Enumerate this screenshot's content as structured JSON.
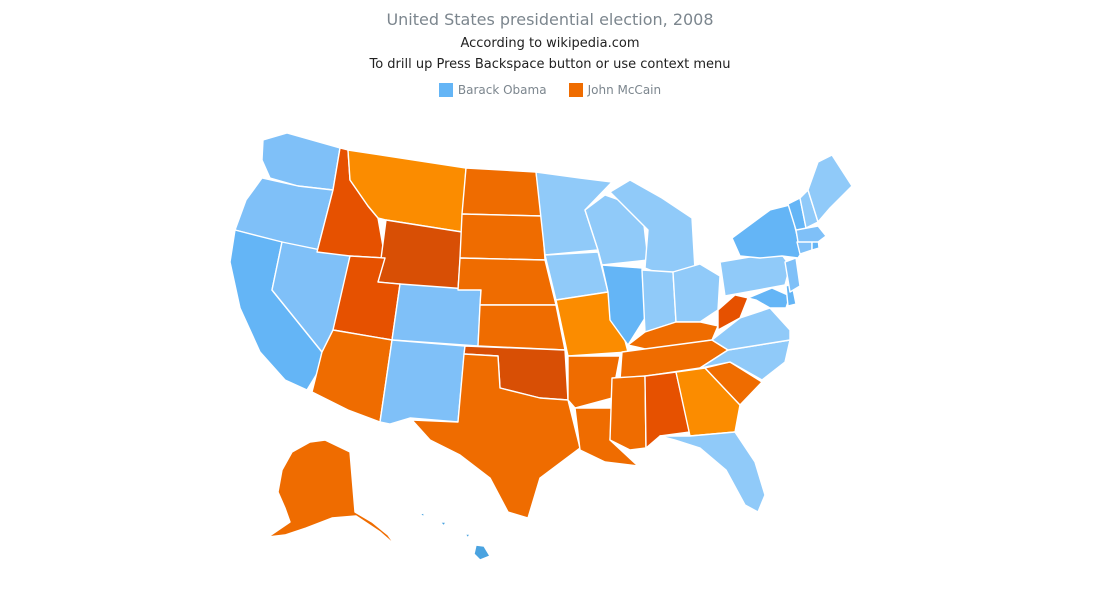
{
  "chart": {
    "title": "United States presidential election, 2008",
    "subtitle_1": "According to wikipedia.com",
    "subtitle_2": "To drill up Press Backspace button or use context menu"
  },
  "legend": [
    {
      "name": "Barack Obama",
      "color": "#64b5f6"
    },
    {
      "name": "John McCain",
      "color": "#ef6c00"
    }
  ],
  "colors": {
    "obama_dark": "#64b5f6",
    "obama_mid": "#7fc0f8",
    "obama_light": "#90caf9",
    "mccain_light": "#fb8c00",
    "mccain_mid": "#ef6c00",
    "mccain_dark": "#e65100",
    "mccain_darkest": "#d84f05",
    "hawaii": "#4aa3e0"
  },
  "states": [
    {
      "id": "WA",
      "winner": "Barack Obama",
      "shade": "obama_mid"
    },
    {
      "id": "OR",
      "winner": "Barack Obama",
      "shade": "obama_mid"
    },
    {
      "id": "CA",
      "winner": "Barack Obama",
      "shade": "obama_dark"
    },
    {
      "id": "NV",
      "winner": "Barack Obama",
      "shade": "obama_mid"
    },
    {
      "id": "ID",
      "winner": "John McCain",
      "shade": "mccain_dark"
    },
    {
      "id": "MT",
      "winner": "John McCain",
      "shade": "mccain_light"
    },
    {
      "id": "WY",
      "winner": "John McCain",
      "shade": "mccain_darkest"
    },
    {
      "id": "UT",
      "winner": "John McCain",
      "shade": "mccain_dark"
    },
    {
      "id": "CO",
      "winner": "Barack Obama",
      "shade": "obama_mid"
    },
    {
      "id": "AZ",
      "winner": "John McCain",
      "shade": "mccain_mid"
    },
    {
      "id": "NM",
      "winner": "Barack Obama",
      "shade": "obama_mid"
    },
    {
      "id": "ND",
      "winner": "John McCain",
      "shade": "mccain_mid"
    },
    {
      "id": "SD",
      "winner": "John McCain",
      "shade": "mccain_mid"
    },
    {
      "id": "NE",
      "winner": "John McCain",
      "shade": "mccain_mid"
    },
    {
      "id": "KS",
      "winner": "John McCain",
      "shade": "mccain_mid"
    },
    {
      "id": "OK",
      "winner": "John McCain",
      "shade": "mccain_darkest"
    },
    {
      "id": "TX",
      "winner": "John McCain",
      "shade": "mccain_mid"
    },
    {
      "id": "MN",
      "winner": "Barack Obama",
      "shade": "obama_light"
    },
    {
      "id": "IA",
      "winner": "Barack Obama",
      "shade": "obama_light"
    },
    {
      "id": "MO",
      "winner": "John McCain",
      "shade": "mccain_light"
    },
    {
      "id": "AR",
      "winner": "John McCain",
      "shade": "mccain_mid"
    },
    {
      "id": "LA",
      "winner": "John McCain",
      "shade": "mccain_mid"
    },
    {
      "id": "WI",
      "winner": "Barack Obama",
      "shade": "obama_light"
    },
    {
      "id": "IL",
      "winner": "Barack Obama",
      "shade": "obama_dark"
    },
    {
      "id": "MI",
      "winner": "Barack Obama",
      "shade": "obama_light"
    },
    {
      "id": "IN",
      "winner": "Barack Obama",
      "shade": "obama_light"
    },
    {
      "id": "OH",
      "winner": "Barack Obama",
      "shade": "obama_light"
    },
    {
      "id": "KY",
      "winner": "John McCain",
      "shade": "mccain_mid"
    },
    {
      "id": "TN",
      "winner": "John McCain",
      "shade": "mccain_mid"
    },
    {
      "id": "MS",
      "winner": "John McCain",
      "shade": "mccain_mid"
    },
    {
      "id": "AL",
      "winner": "John McCain",
      "shade": "mccain_dark"
    },
    {
      "id": "GA",
      "winner": "John McCain",
      "shade": "mccain_light"
    },
    {
      "id": "FL",
      "winner": "Barack Obama",
      "shade": "obama_light"
    },
    {
      "id": "SC",
      "winner": "John McCain",
      "shade": "mccain_mid"
    },
    {
      "id": "NC",
      "winner": "Barack Obama",
      "shade": "obama_light"
    },
    {
      "id": "VA",
      "winner": "Barack Obama",
      "shade": "obama_light"
    },
    {
      "id": "WV",
      "winner": "John McCain",
      "shade": "mccain_dark"
    },
    {
      "id": "MD",
      "winner": "Barack Obama",
      "shade": "obama_dark"
    },
    {
      "id": "DE",
      "winner": "Barack Obama",
      "shade": "obama_dark"
    },
    {
      "id": "PA",
      "winner": "Barack Obama",
      "shade": "obama_light"
    },
    {
      "id": "NJ",
      "winner": "Barack Obama",
      "shade": "obama_mid"
    },
    {
      "id": "NY",
      "winner": "Barack Obama",
      "shade": "obama_dark"
    },
    {
      "id": "CT",
      "winner": "Barack Obama",
      "shade": "obama_mid"
    },
    {
      "id": "RI",
      "winner": "Barack Obama",
      "shade": "obama_dark"
    },
    {
      "id": "MA",
      "winner": "Barack Obama",
      "shade": "obama_mid"
    },
    {
      "id": "VT",
      "winner": "Barack Obama",
      "shade": "obama_dark"
    },
    {
      "id": "NH",
      "winner": "Barack Obama",
      "shade": "obama_light"
    },
    {
      "id": "ME",
      "winner": "Barack Obama",
      "shade": "obama_light"
    },
    {
      "id": "AK",
      "winner": "John McCain",
      "shade": "mccain_mid"
    },
    {
      "id": "HI",
      "winner": "Barack Obama",
      "shade": "hawaii"
    }
  ]
}
